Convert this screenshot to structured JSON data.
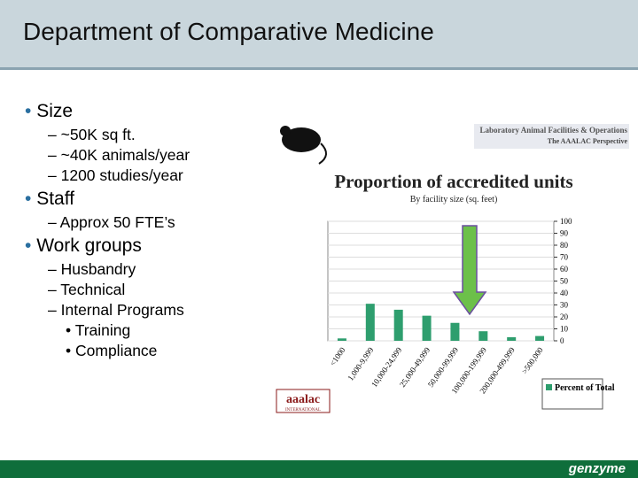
{
  "header": {
    "title": "Department of Comparative Medicine"
  },
  "bullets": [
    {
      "text": "Size",
      "subitems": [
        "~50K sq ft.",
        "~40K animals/year",
        "1200 studies/year"
      ]
    },
    {
      "text": "Staff",
      "subitems": [
        "Approx 50 FTE’s"
      ]
    },
    {
      "text": "Work groups",
      "subitems": [
        "Husbandry",
        "Technical",
        "Internal Programs"
      ],
      "subsubitems": [
        "Training",
        "Compliance"
      ]
    }
  ],
  "logos": {
    "banner_line1": "Laboratory Animal Facilities & Operations",
    "banner_line2": "The AAALAC Perspective",
    "aaalac": "aaalac",
    "aaalac_sub": "INTERNATIONAL",
    "footer": "genzyme"
  },
  "chart_data": {
    "type": "bar",
    "title": "Proportion of accredited units",
    "subtitle": "By facility size (sq. feet)",
    "categories": [
      "<1000",
      "1,000-9,999",
      "10,000-24,999",
      "25,000-49,999",
      "50,000-99,999",
      "100,000-199,999",
      "200,000-499,999",
      ">500,000"
    ],
    "series": [
      {
        "name": "Percent of Total",
        "color": "#2e9e6e",
        "values": [
          2,
          31,
          26,
          21,
          15,
          8,
          3,
          4
        ]
      }
    ],
    "ylim": [
      0,
      100
    ],
    "yticks": [
      0,
      10,
      20,
      30,
      40,
      50,
      60,
      70,
      80,
      90,
      100
    ],
    "grid": true,
    "legend": "lower right"
  }
}
